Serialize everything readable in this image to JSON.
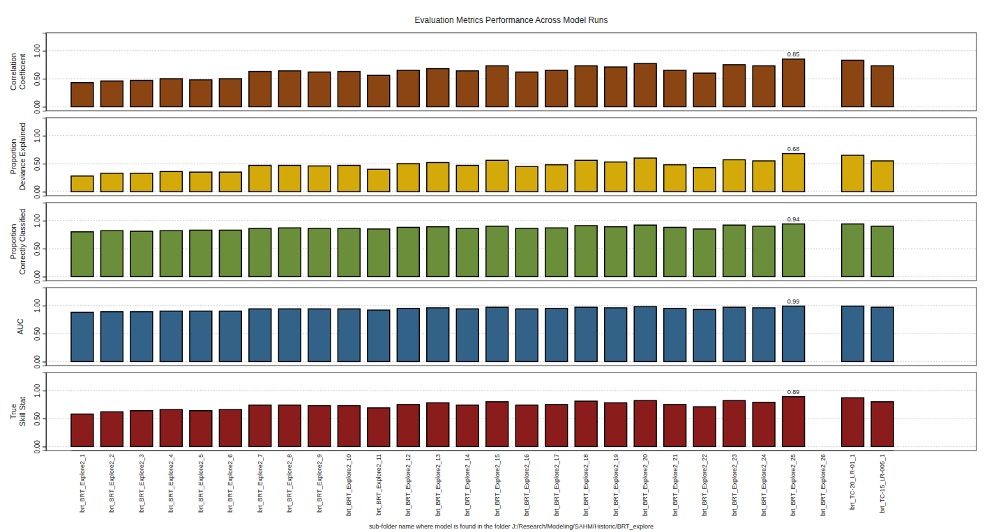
{
  "chart_data": [
    {
      "type": "bar",
      "title": "Evaluation Metrics Performance Across Model Runs",
      "ylabel": [
        "Correlation",
        "Coefficient"
      ],
      "categories": [
        "brt_BRT_Explore2_1",
        "brt_BRT_Explore2_2",
        "brt_BRT_Explore2_3",
        "brt_BRT_Explore2_4",
        "brt_BRT_Explore2_5",
        "brt_BRT_Explore2_6",
        "brt_BRT_Explore2_7",
        "brt_BRT_Explore2_8",
        "brt_BRT_Explore2_9",
        "brt_BRT_Explore2_10",
        "brt_BRT_Explore2_11",
        "brt_BRT_Explore2_12",
        "brt_BRT_Explore2_13",
        "brt_BRT_Explore2_14",
        "brt_BRT_Explore2_15",
        "brt_BRT_Explore2_16",
        "brt_BRT_Explore2_17",
        "brt_BRT_Explore2_18",
        "brt_BRT_Explore2_19",
        "brt_BRT_Explore2_20",
        "brt_BRT_Explore2_21",
        "brt_BRT_Explore2_22",
        "brt_BRT_Explore2_23",
        "brt_BRT_Explore2_24",
        "brt_BRT_Explore2_25",
        "brt_BRT_Explore2_26",
        "brt_TC-20_LR-01_1",
        "brt_TC-15_LR-005_1"
      ],
      "values": [
        0.43,
        0.46,
        0.47,
        0.5,
        0.48,
        0.5,
        0.63,
        0.64,
        0.62,
        0.63,
        0.56,
        0.65,
        0.68,
        0.64,
        0.73,
        0.62,
        0.65,
        0.73,
        0.71,
        0.77,
        0.65,
        0.6,
        0.75,
        0.73,
        0.85,
        null,
        0.83,
        0.73
      ],
      "color": "#8b4513",
      "ylim": [
        -0.07,
        1.32
      ],
      "yticks": [
        {
          "value": 0,
          "label": "0.00"
        },
        {
          "value": 0.5,
          "label": "0.50"
        },
        {
          "value": 1,
          "label": "1.00"
        }
      ],
      "grid": true,
      "tick_labels": "y",
      "annotations": [
        {
          "x": "brt_BRT_Explore2_25",
          "y": 0.85,
          "text": "0.85"
        }
      ]
    },
    {
      "type": "bar",
      "ylabel": [
        "Proportion",
        "Deviance Explained"
      ],
      "categories": [
        "brt_BRT_Explore2_1",
        "brt_BRT_Explore2_2",
        "brt_BRT_Explore2_3",
        "brt_BRT_Explore2_4",
        "brt_BRT_Explore2_5",
        "brt_BRT_Explore2_6",
        "brt_BRT_Explore2_7",
        "brt_BRT_Explore2_8",
        "brt_BRT_Explore2_9",
        "brt_BRT_Explore2_10",
        "brt_BRT_Explore2_11",
        "brt_BRT_Explore2_12",
        "brt_BRT_Explore2_13",
        "brt_BRT_Explore2_14",
        "brt_BRT_Explore2_15",
        "brt_BRT_Explore2_16",
        "brt_BRT_Explore2_17",
        "brt_BRT_Explore2_18",
        "brt_BRT_Explore2_19",
        "brt_BRT_Explore2_20",
        "brt_BRT_Explore2_21",
        "brt_BRT_Explore2_22",
        "brt_BRT_Explore2_23",
        "brt_BRT_Explore2_24",
        "brt_BRT_Explore2_25",
        "brt_BRT_Explore2_26",
        "brt_TC-20_LR-01_1",
        "brt_TC-15_LR-005_1"
      ],
      "values": [
        0.28,
        0.33,
        0.33,
        0.36,
        0.35,
        0.35,
        0.47,
        0.47,
        0.46,
        0.47,
        0.4,
        0.5,
        0.52,
        0.47,
        0.56,
        0.45,
        0.48,
        0.56,
        0.53,
        0.6,
        0.48,
        0.43,
        0.57,
        0.55,
        0.68,
        null,
        0.65,
        0.55
      ],
      "color": "#d4aa0a",
      "ylim": [
        -0.07,
        1.32
      ],
      "yticks": [
        {
          "value": 0,
          "label": "0.00"
        },
        {
          "value": 0.5,
          "label": "0.50"
        },
        {
          "value": 1,
          "label": "1.00"
        }
      ],
      "grid": true,
      "tick_labels": "y",
      "annotations": [
        {
          "x": "brt_BRT_Explore2_25",
          "y": 0.68,
          "text": "0.68"
        }
      ]
    },
    {
      "type": "bar",
      "ylabel": [
        "Proportion",
        "Correctly Classified"
      ],
      "categories": [
        "brt_BRT_Explore2_1",
        "brt_BRT_Explore2_2",
        "brt_BRT_Explore2_3",
        "brt_BRT_Explore2_4",
        "brt_BRT_Explore2_5",
        "brt_BRT_Explore2_6",
        "brt_BRT_Explore2_7",
        "brt_BRT_Explore2_8",
        "brt_BRT_Explore2_9",
        "brt_BRT_Explore2_10",
        "brt_BRT_Explore2_11",
        "brt_BRT_Explore2_12",
        "brt_BRT_Explore2_13",
        "brt_BRT_Explore2_14",
        "brt_BRT_Explore2_15",
        "brt_BRT_Explore2_16",
        "brt_BRT_Explore2_17",
        "brt_BRT_Explore2_18",
        "brt_BRT_Explore2_19",
        "brt_BRT_Explore2_20",
        "brt_BRT_Explore2_21",
        "brt_BRT_Explore2_22",
        "brt_BRT_Explore2_23",
        "brt_BRT_Explore2_24",
        "brt_BRT_Explore2_25",
        "brt_BRT_Explore2_26",
        "brt_TC-20_LR-01_1",
        "brt_TC-15_LR-005_1"
      ],
      "values": [
        0.8,
        0.82,
        0.81,
        0.82,
        0.83,
        0.83,
        0.86,
        0.87,
        0.86,
        0.86,
        0.85,
        0.88,
        0.89,
        0.86,
        0.9,
        0.86,
        0.87,
        0.91,
        0.89,
        0.92,
        0.88,
        0.85,
        0.92,
        0.9,
        0.94,
        null,
        0.94,
        0.9
      ],
      "color": "#6b8e3a",
      "ylim": [
        -0.07,
        1.32
      ],
      "yticks": [
        {
          "value": 0,
          "label": "0.00"
        },
        {
          "value": 0.5,
          "label": "0.50"
        },
        {
          "value": 1,
          "label": "1.00"
        }
      ],
      "grid": true,
      "tick_labels": "y",
      "annotations": [
        {
          "x": "brt_BRT_Explore2_25",
          "y": 0.94,
          "text": "0.94"
        }
      ]
    },
    {
      "type": "bar",
      "ylabel": [
        "AUC"
      ],
      "categories": [
        "brt_BRT_Explore2_1",
        "brt_BRT_Explore2_2",
        "brt_BRT_Explore2_3",
        "brt_BRT_Explore2_4",
        "brt_BRT_Explore2_5",
        "brt_BRT_Explore2_6",
        "brt_BRT_Explore2_7",
        "brt_BRT_Explore2_8",
        "brt_BRT_Explore2_9",
        "brt_BRT_Explore2_10",
        "brt_BRT_Explore2_11",
        "brt_BRT_Explore2_12",
        "brt_BRT_Explore2_13",
        "brt_BRT_Explore2_14",
        "brt_BRT_Explore2_15",
        "brt_BRT_Explore2_16",
        "brt_BRT_Explore2_17",
        "brt_BRT_Explore2_18",
        "brt_BRT_Explore2_19",
        "brt_BRT_Explore2_20",
        "brt_BRT_Explore2_21",
        "brt_BRT_Explore2_22",
        "brt_BRT_Explore2_23",
        "brt_BRT_Explore2_24",
        "brt_BRT_Explore2_25",
        "brt_BRT_Explore2_26",
        "brt_TC-20_LR-01_1",
        "brt_TC-15_LR-005_1"
      ],
      "values": [
        0.88,
        0.89,
        0.89,
        0.9,
        0.9,
        0.9,
        0.94,
        0.94,
        0.94,
        0.94,
        0.92,
        0.95,
        0.96,
        0.94,
        0.97,
        0.94,
        0.95,
        0.97,
        0.96,
        0.98,
        0.95,
        0.93,
        0.97,
        0.96,
        0.99,
        null,
        0.99,
        0.97
      ],
      "color": "#336289",
      "ylim": [
        -0.07,
        1.32
      ],
      "yticks": [
        {
          "value": 0,
          "label": "0.00"
        },
        {
          "value": 0.5,
          "label": "0.50"
        },
        {
          "value": 1,
          "label": "1.00"
        }
      ],
      "grid": true,
      "tick_labels": "y",
      "annotations": [
        {
          "x": "brt_BRT_Explore2_25",
          "y": 0.99,
          "text": "0.99"
        }
      ]
    },
    {
      "type": "bar",
      "ylabel": [
        "True",
        "Skill Stat"
      ],
      "xlabel": "sub-folder name where model is found in the folder J:/Research/Modeling/SAHM/Historic/BRT_explore",
      "categories": [
        "brt_BRT_Explore2_1",
        "brt_BRT_Explore2_2",
        "brt_BRT_Explore2_3",
        "brt_BRT_Explore2_4",
        "brt_BRT_Explore2_5",
        "brt_BRT_Explore2_6",
        "brt_BRT_Explore2_7",
        "brt_BRT_Explore2_8",
        "brt_BRT_Explore2_9",
        "brt_BRT_Explore2_10",
        "brt_BRT_Explore2_11",
        "brt_BRT_Explore2_12",
        "brt_BRT_Explore2_13",
        "brt_BRT_Explore2_14",
        "brt_BRT_Explore2_15",
        "brt_BRT_Explore2_16",
        "brt_BRT_Explore2_17",
        "brt_BRT_Explore2_18",
        "brt_BRT_Explore2_19",
        "brt_BRT_Explore2_20",
        "brt_BRT_Explore2_21",
        "brt_BRT_Explore2_22",
        "brt_BRT_Explore2_23",
        "brt_BRT_Explore2_24",
        "brt_BRT_Explore2_25",
        "brt_BRT_Explore2_26",
        "brt_TC-20_LR-01_1",
        "brt_TC-15_LR-005_1"
      ],
      "values": [
        0.58,
        0.62,
        0.64,
        0.66,
        0.64,
        0.66,
        0.74,
        0.74,
        0.73,
        0.73,
        0.69,
        0.75,
        0.78,
        0.74,
        0.8,
        0.74,
        0.75,
        0.81,
        0.78,
        0.82,
        0.75,
        0.71,
        0.82,
        0.79,
        0.89,
        null,
        0.87,
        0.8
      ],
      "color": "#8b1c1c",
      "ylim": [
        -0.07,
        1.32
      ],
      "yticks": [
        {
          "value": 0,
          "label": "0.00"
        },
        {
          "value": 0.5,
          "label": "0.50"
        },
        {
          "value": 1,
          "label": "1.00"
        }
      ],
      "grid": true,
      "annotations": [
        {
          "x": "brt_BRT_Explore2_25",
          "y": 0.89,
          "text": "0.89"
        }
      ]
    }
  ]
}
